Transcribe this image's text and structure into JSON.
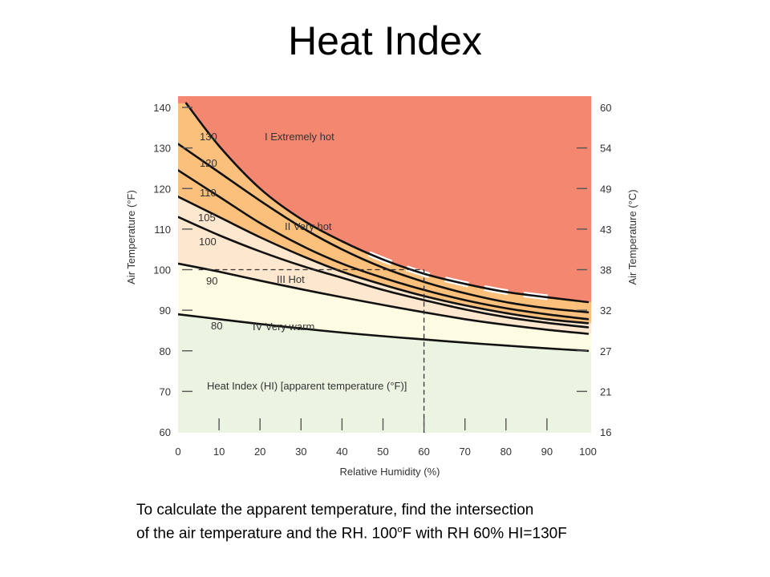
{
  "slide": {
    "title": "Heat Index",
    "caption_line1": "To calculate the apparent temperature, find the intersection",
    "caption_line2_a": "of the air temperature and the RH.  100",
    "caption_line2_sup": "o",
    "caption_line2_b": "F with RH 60% HI=130F"
  },
  "chart_data": {
    "type": "line",
    "xlabel": "Relative Humidity (%)",
    "ylabel": "Air Temperature (°F)",
    "ylabel_right": "Air Temperature (°C)",
    "xlim": [
      0,
      100
    ],
    "ylim": [
      60,
      140
    ],
    "x_ticks": [
      0,
      10,
      20,
      30,
      40,
      50,
      60,
      70,
      80,
      90,
      100
    ],
    "y_ticks": [
      60,
      70,
      80,
      90,
      100,
      110,
      120,
      130,
      140
    ],
    "y_right_ticks": [
      {
        "label": "16",
        "f": 60
      },
      {
        "label": "21",
        "f": 70
      },
      {
        "label": "27",
        "f": 80
      },
      {
        "label": "32",
        "f": 90
      },
      {
        "label": "38",
        "f": 100
      },
      {
        "label": "43",
        "f": 110
      },
      {
        "label": "49",
        "f": 120
      },
      {
        "label": "54",
        "f": 130
      },
      {
        "label": "60",
        "f": 140
      }
    ],
    "grid": false,
    "series": [
      {
        "name": "130",
        "x": [
          2,
          10,
          20,
          30,
          40,
          50,
          60,
          70,
          80,
          90,
          100
        ],
        "y": [
          141,
          130.5,
          120,
          112.5,
          107,
          102.5,
          99,
          96.5,
          94.5,
          93.2,
          92
        ]
      },
      {
        "name": "120",
        "x": [
          0,
          10,
          20,
          30,
          40,
          50,
          60,
          70,
          80,
          90,
          100
        ],
        "y": [
          131,
          124,
          117,
          110.5,
          105,
          100.5,
          97,
          94.2,
          92,
          90.5,
          89.5
        ]
      },
      {
        "name": "110",
        "x": [
          0,
          10,
          20,
          30,
          40,
          50,
          60,
          70,
          80,
          90,
          100
        ],
        "y": [
          124.5,
          118,
          111.5,
          106,
          101.5,
          98,
          95,
          92.5,
          90.5,
          89,
          87.8
        ]
      },
      {
        "name": "105",
        "x": [
          0,
          10,
          20,
          30,
          40,
          50,
          60,
          70,
          80,
          90,
          100
        ],
        "y": [
          118,
          113,
          108,
          103.5,
          99.5,
          96.3,
          93.5,
          91.2,
          89.3,
          87.8,
          86.8
        ]
      },
      {
        "name": "100",
        "x": [
          0,
          10,
          20,
          30,
          40,
          50,
          60,
          70,
          80,
          90,
          100
        ],
        "y": [
          113,
          108.5,
          104.5,
          101,
          98,
          95,
          92.5,
          90.2,
          88.3,
          86.9,
          85.8
        ]
      },
      {
        "name": "90",
        "x": [
          0,
          10,
          20,
          30,
          40,
          50,
          60,
          70,
          80,
          90,
          100
        ],
        "y": [
          101.5,
          99.5,
          97.3,
          95.2,
          93.2,
          91.3,
          89.5,
          87.8,
          86.4,
          85.2,
          84.2
        ]
      },
      {
        "name": "80",
        "x": [
          0,
          10,
          20,
          30,
          40,
          50,
          60,
          70,
          80,
          90,
          100
        ],
        "y": [
          89,
          87.8,
          86.6,
          85.5,
          84.5,
          83.6,
          82.8,
          82,
          81.3,
          80.6,
          80
        ]
      }
    ],
    "zones": [
      {
        "label": "I  Extremely hot",
        "color": "#f4876f"
      },
      {
        "label": "II  Very hot",
        "color": "#fbc07c"
      },
      {
        "label": "III  Hot",
        "color": "#fde8cf"
      },
      {
        "label": "IV  Very warm",
        "color": "#fefbe3"
      },
      {
        "label": "",
        "color": "#ebf3e1"
      }
    ],
    "annotation": "Heat Index (HI) [apparent temperature (°F)]",
    "example": {
      "rh": 60,
      "temp_f": 100
    }
  }
}
